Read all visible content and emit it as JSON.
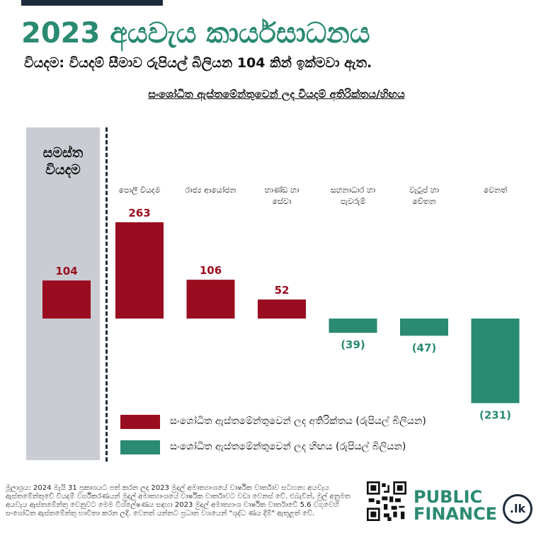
{
  "header": {
    "title": "2023 අයවැය කාර්යසාධනය",
    "subtitle": "වියදම: වියදම් සීමාව රුපියල් බිලියන 104 කින් ඉක්මවා ඇත."
  },
  "chart_data": {
    "type": "bar",
    "title": "සංශෝධිත ඇස්තමේන්තුවෙන් ලද වියදම් අතිරික්තය/හිඟය",
    "total": {
      "label": "සමස්ත වියදම",
      "value": 104,
      "value_label": "104"
    },
    "categories": [
      "පොලී වියදම",
      "රාජ්‍ය ආයෝජන",
      "භාණ්ඩ හා සේවා",
      "සහනාධාර හා පැවරුම්",
      "වැටුප් හා වේතන",
      "වෙනත්"
    ],
    "values": [
      263,
      106,
      52,
      -39,
      -47,
      -231
    ],
    "value_labels": [
      "263",
      "106",
      "52",
      "(39)",
      "(47)",
      "(231)"
    ],
    "colors": {
      "surplus": "#9a0c1f",
      "deficit": "#2a8a72"
    },
    "legend": [
      {
        "label": "සංශෝධිත ඇස්තමේන්තුවෙන් ලද අතිරික්තය (රුපියල් බිලියන)",
        "color": "#9a0c1f"
      },
      {
        "label": "සංශෝධිත ඇස්තමේන්තුවෙන් ලද හිඟය (රුපියල් බිලියන)",
        "color": "#2a8a72"
      }
    ]
  },
  "footer": {
    "source": "මූලාශ්‍රය: 2024 මැයි 31 ප්‍රකාශයට පත් කරන ලද 2023 මුදල් අමාත්‍යාංශයේ වාර්ෂික වාර්තාව සටහන: අයවැය ඇස්තමේන්තුවේ වියදම් වර්ගීකරණයන් මුදල් අමාත්‍යාංශයේ වාර්ෂික වාර්තාවට වඩා වෙනස් වේ. එබැවින්, මුල් අනුමත අයවැය ඇස්තමේන්තු වෙනුවට මෙම විශ්ලේෂණය සඳහා 2023 මුදල් අමාත්‍යාංශ වාර්ෂික වාර්තාවේ 5.6 වගුවෙහි සංශෝධිත ඇස්තමේන්තු භාවිතා කරන ලදී. වෙනත් යන්නට ප්‍රධාන වශයෙන් \"ශුද්ධ ණය දීම්\" ඇතුළත් වේ.",
    "logo_line1": "PUBLIC",
    "logo_line2": "FINANCE",
    "logo_badge": ".lk",
    "qr_icon": "qr-code-icon"
  }
}
